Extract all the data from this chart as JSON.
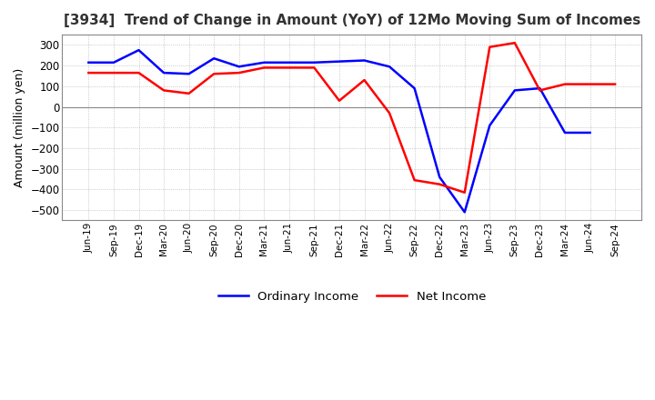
{
  "title": "[3934]  Trend of Change in Amount (YoY) of 12Mo Moving Sum of Incomes",
  "ylabel": "Amount (million yen)",
  "ylim": [
    -550,
    350
  ],
  "yticks": [
    -500,
    -400,
    -300,
    -200,
    -100,
    0,
    100,
    200,
    300
  ],
  "background_color": "#ffffff",
  "plot_bg_color": "#ffffff",
  "grid_color": "#aaaaaa",
  "legend": [
    "Ordinary Income",
    "Net Income"
  ],
  "line_colors": [
    "#0000ff",
    "#ff0000"
  ],
  "x_labels": [
    "Jun-19",
    "Sep-19",
    "Dec-19",
    "Mar-20",
    "Jun-20",
    "Sep-20",
    "Dec-20",
    "Mar-21",
    "Jun-21",
    "Sep-21",
    "Dec-21",
    "Mar-22",
    "Jun-22",
    "Sep-22",
    "Dec-22",
    "Mar-23",
    "Jun-23",
    "Sep-23",
    "Dec-23",
    "Mar-24",
    "Jun-24",
    "Sep-24"
  ],
  "ordinary_income": [
    215,
    215,
    275,
    165,
    160,
    235,
    195,
    215,
    215,
    215,
    220,
    225,
    195,
    90,
    -340,
    -510,
    -90,
    80,
    90,
    -125,
    -125,
    null
  ],
  "net_income": [
    165,
    165,
    165,
    80,
    65,
    160,
    165,
    190,
    190,
    190,
    30,
    130,
    -30,
    -355,
    -375,
    -415,
    290,
    310,
    80,
    110,
    110,
    110
  ]
}
